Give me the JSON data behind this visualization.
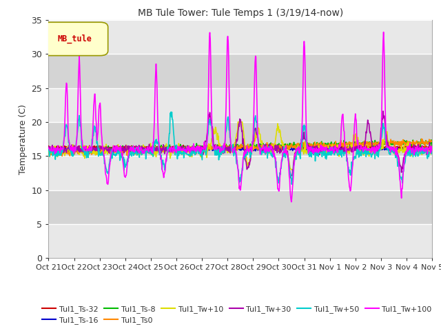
{
  "title": "MB Tule Tower: Tule Temps 1 (3/19/14-now)",
  "ylabel": "Temperature (C)",
  "xlabel": "",
  "ylim": [
    0,
    35
  ],
  "yticks": [
    0,
    5,
    10,
    15,
    20,
    25,
    30,
    35
  ],
  "xlim": [
    0,
    15
  ],
  "xtick_labels": [
    "Oct 21",
    "Oct 22",
    "Oct 23",
    "Oct 24",
    "Oct 25",
    "Oct 26",
    "Oct 27",
    "Oct 28",
    "Oct 29",
    "Oct 30",
    "Oct 31",
    "Nov 1",
    "Nov 2",
    "Nov 3",
    "Nov 4",
    "Nov 5"
  ],
  "bg_color": "#ffffff",
  "plot_bg": "#e8e8e8",
  "legend_label": "MB_tule",
  "band_colors": [
    "#e8e8e8",
    "#d8d8d8"
  ],
  "series": {
    "Tul1_Ts-32": {
      "color": "#cc0000",
      "lw": 1.2
    },
    "Tul1_Ts-16": {
      "color": "#0000cc",
      "lw": 1.2
    },
    "Tul1_Ts-8": {
      "color": "#00bb00",
      "lw": 1.2
    },
    "Tul1_Ts0": {
      "color": "#ff8800",
      "lw": 1.2
    },
    "Tul1_Tw+10": {
      "color": "#dddd00",
      "lw": 1.2
    },
    "Tul1_Tw+30": {
      "color": "#aa00aa",
      "lw": 1.2
    },
    "Tul1_Tw+50": {
      "color": "#00cccc",
      "lw": 1.2
    },
    "Tul1_Tw+100": {
      "color": "#ff00ff",
      "lw": 1.2
    }
  }
}
